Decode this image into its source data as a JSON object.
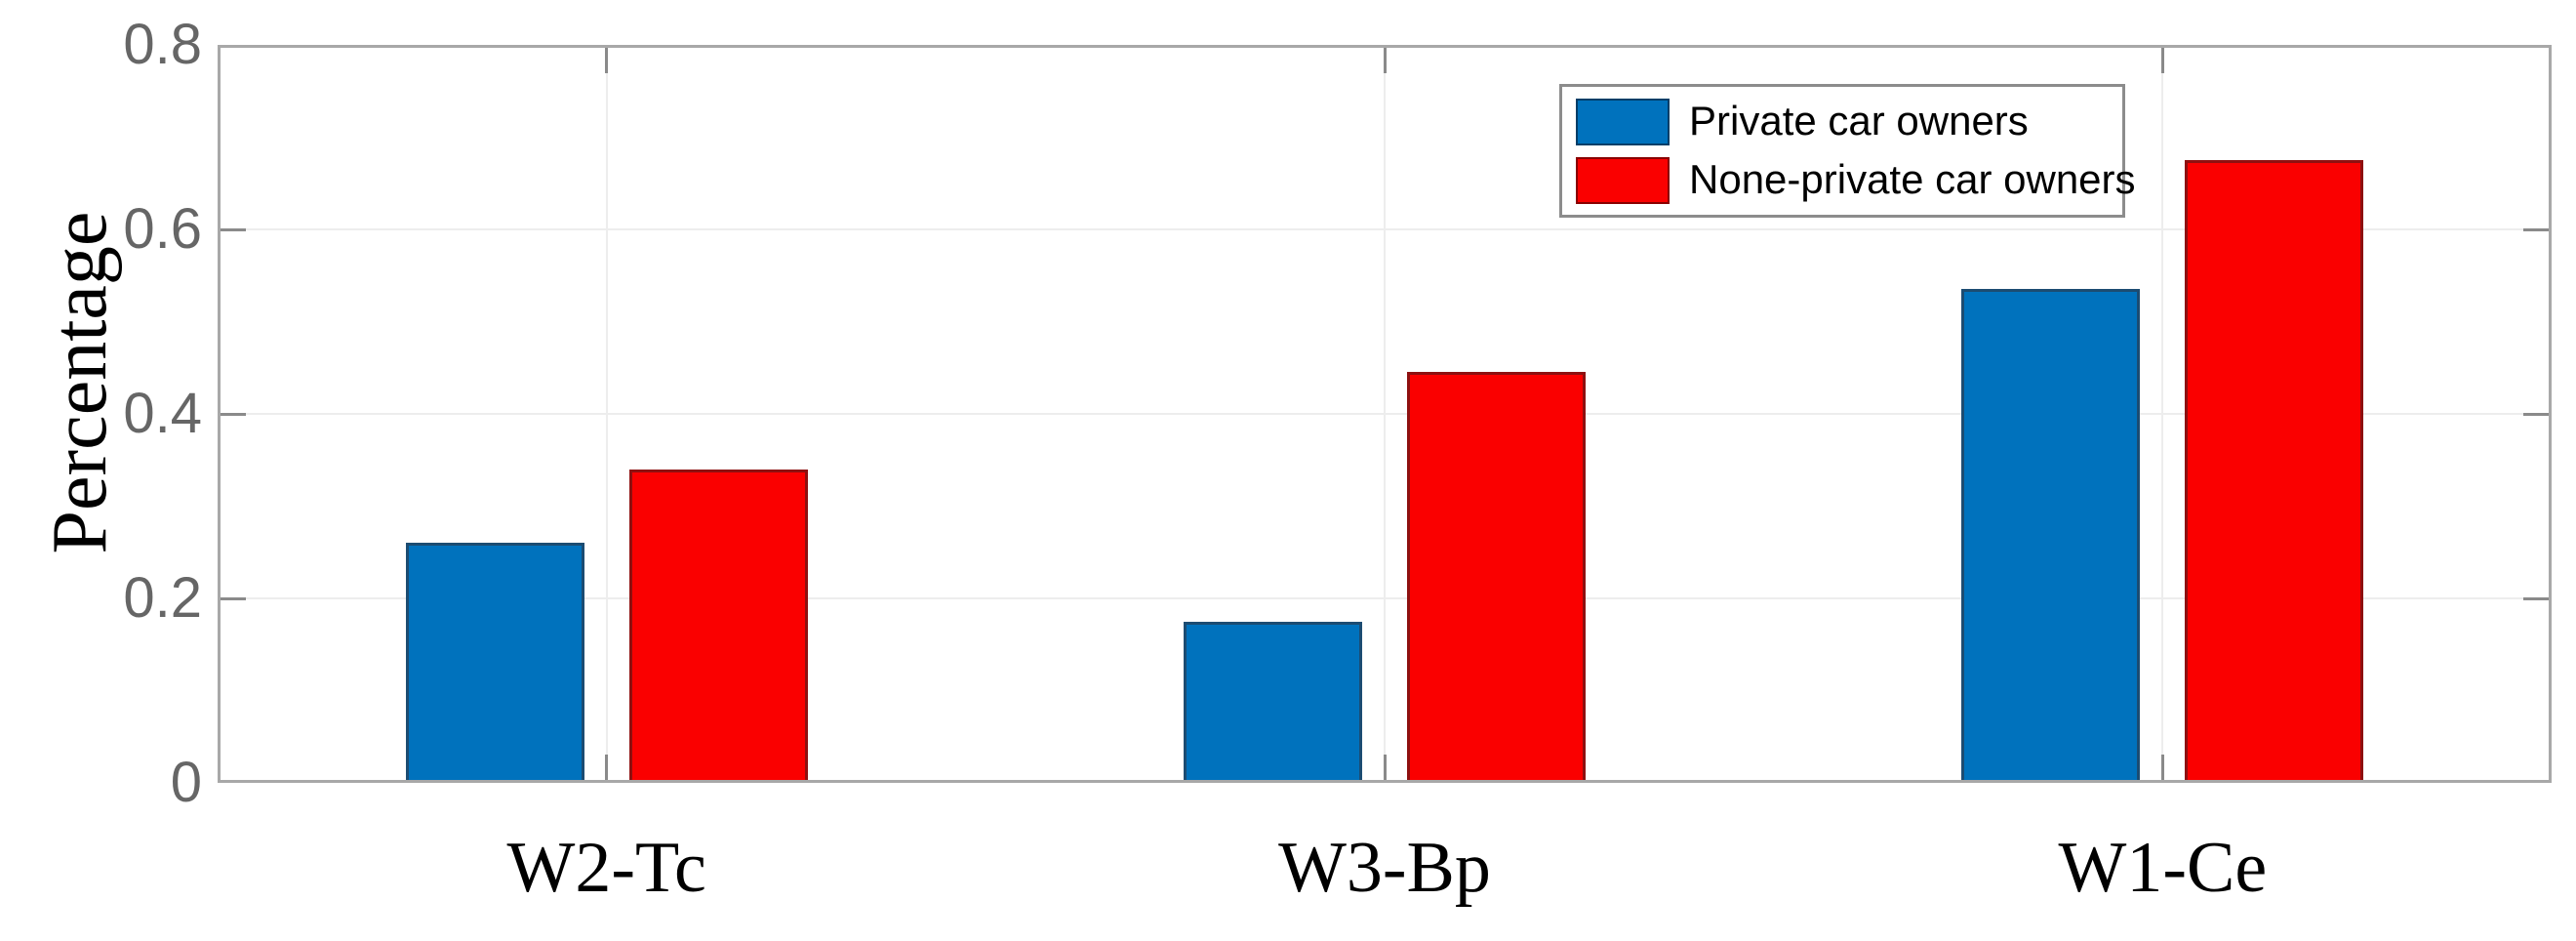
{
  "figure": {
    "background": "#FFFFFF"
  },
  "chart_data": {
    "type": "bar",
    "title": "",
    "xlabel": "",
    "ylabel": "Percentage",
    "categories": [
      "W2-Tc",
      "W3-Bp",
      "W1-Ce"
    ],
    "series": [
      {
        "name": "Private car owners",
        "color": "#0072BD",
        "edge_color": "#1C4C72",
        "values": [
          0.26,
          0.175,
          0.535
        ]
      },
      {
        "name": "None-private car owners",
        "color": "#FA0000",
        "edge_color": "#8E1010",
        "values": [
          0.34,
          0.445,
          0.675
        ]
      }
    ],
    "ylim": [
      0,
      0.8
    ],
    "yticks": [
      0,
      0.2,
      0.4,
      0.6,
      0.8
    ],
    "ytick_labels": [
      "0",
      "0.2",
      "0.4",
      "0.6",
      "0.8"
    ],
    "grid": true,
    "legend_position": "top-right",
    "colors": {
      "axis_box": "#A8A8A8",
      "grid": "#EDEDED",
      "tick": "#8A8A8A",
      "ytick_label": "#666666",
      "category_label": "#000000",
      "legend_border": "#8C8C8C"
    }
  }
}
